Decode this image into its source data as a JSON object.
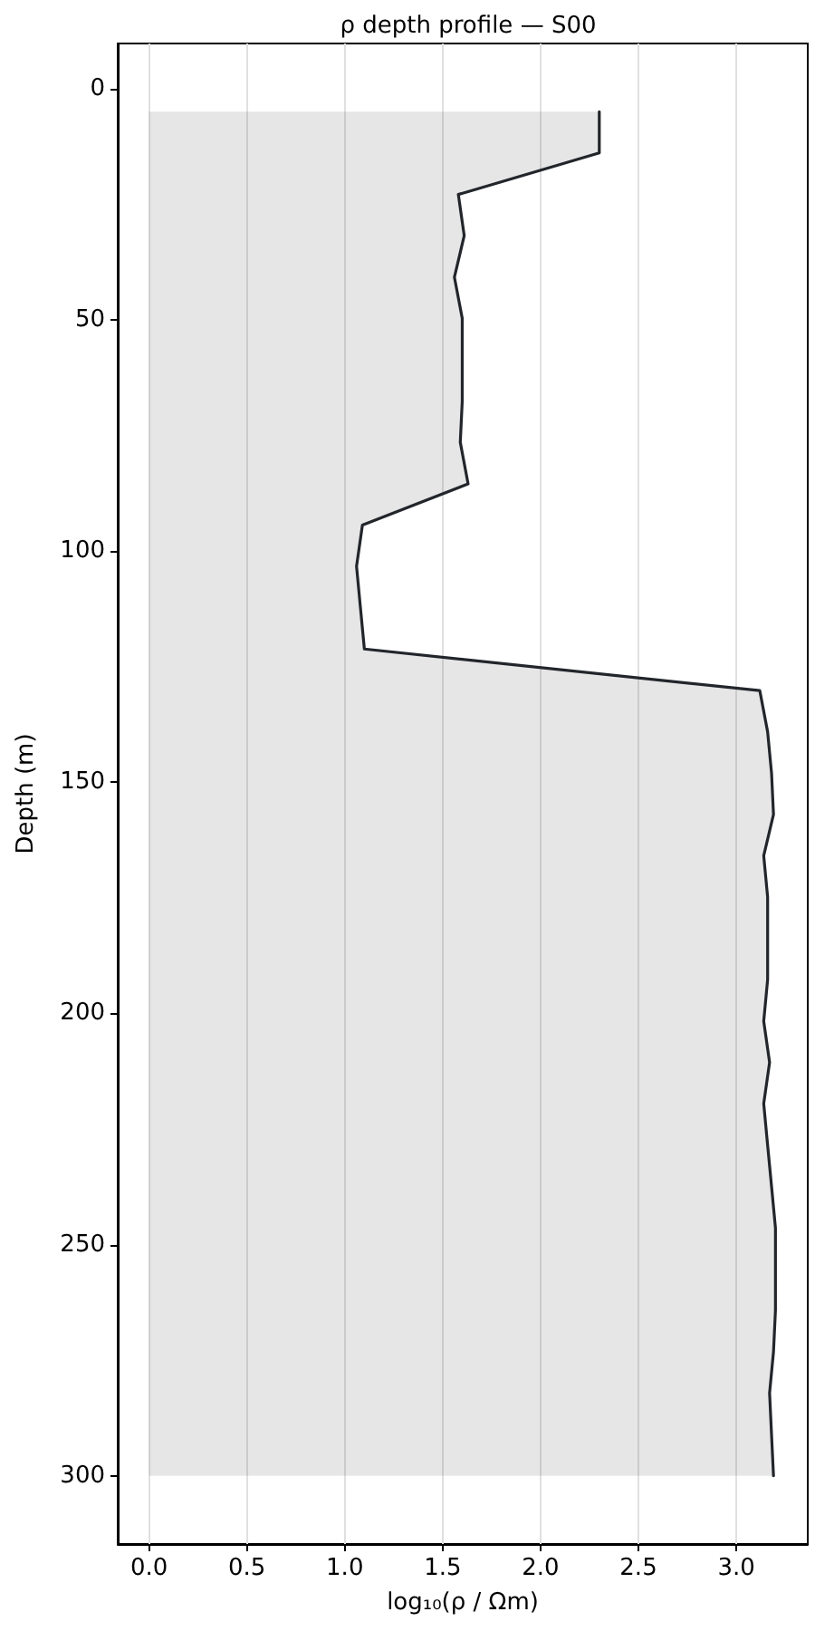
{
  "chart_data": {
    "type": "area",
    "orientation": "horizontal",
    "title": "ρ depth profile — S00",
    "xlabel": "log₁₀(ρ / Ωm)",
    "ylabel": "Depth (m)",
    "x": [
      5,
      13.9,
      22.9,
      31.8,
      40.8,
      49.7,
      58.6,
      67.6,
      76.5,
      85.5,
      94.4,
      103.3,
      112.3,
      121.2,
      130.2,
      139.1,
      148,
      157,
      165.9,
      174.8,
      183.8,
      192.7,
      201.7,
      210.6,
      219.5,
      228.5,
      237.4,
      246.4,
      255.3,
      264.2,
      273.2,
      282.1,
      291.1,
      300
    ],
    "series": [
      {
        "color": "#22262b",
        "values": [
          2.3,
          2.3,
          1.58,
          1.61,
          1.56,
          1.6,
          1.6,
          1.6,
          1.59,
          1.63,
          1.09,
          1.06,
          1.08,
          1.1,
          3.12,
          3.16,
          3.18,
          3.19,
          3.14,
          3.16,
          3.16,
          3.16,
          3.14,
          3.17,
          3.14,
          3.16,
          3.18,
          3.2,
          3.2,
          3.2,
          3.19,
          3.17,
          3.18,
          3.19
        ]
      }
    ],
    "xlim": [
      -0.16,
      3.365
    ],
    "xticks": [
      {
        "value": 0,
        "label": "0.0"
      },
      0.5,
      {
        "value": 1,
        "label": "1.0"
      },
      1.5,
      {
        "value": 2,
        "label": "2.0"
      },
      2.5,
      {
        "value": 3,
        "label": "3.0"
      }
    ],
    "ylim": [
      314.75,
      -9.75
    ],
    "yticks": [
      0,
      50,
      100,
      150,
      200,
      250,
      300
    ],
    "grid": "x"
  }
}
